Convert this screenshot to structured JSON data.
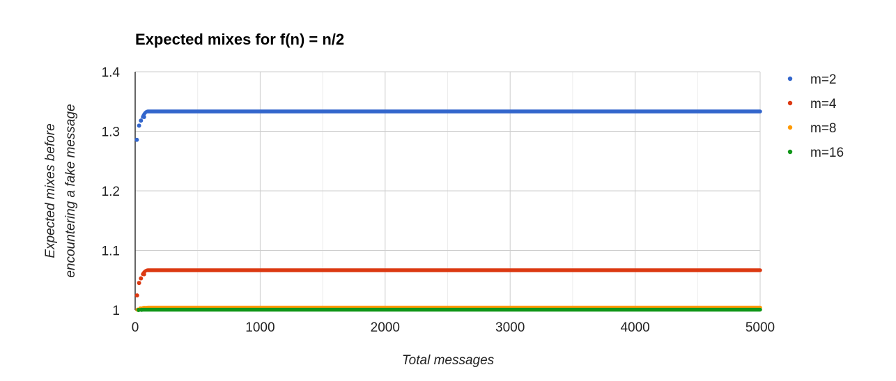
{
  "chart_data": {
    "type": "scatter",
    "title": "Expected mixes for f(n) = n/2",
    "xlabel": "Total messages",
    "ylabel_lines": [
      "Expected mixes before",
      "encountering a fake message"
    ],
    "xlim": [
      0,
      5000
    ],
    "ylim": [
      1,
      1.4
    ],
    "x_ticks": [
      0,
      1000,
      2000,
      3000,
      4000,
      5000
    ],
    "x_tick_labels": [
      "0",
      "1000",
      "2000",
      "3000",
      "4000",
      "5000"
    ],
    "y_ticks": [
      1,
      1.1,
      1.2,
      1.3,
      1.4
    ],
    "y_tick_labels": [
      "1",
      "1.1",
      "1.2",
      "1.3",
      "1.4"
    ],
    "x_minor_gridlines": [
      500,
      1500,
      2500,
      3500,
      4500
    ],
    "grid": true,
    "legend_position": "right",
    "series": [
      {
        "name": "m=2",
        "color": "#3366cc",
        "start_points": [
          [
            2,
            1.2857
          ],
          [
            20,
            1.3095
          ],
          [
            35,
            1.318
          ],
          [
            60,
            1.324
          ]
        ],
        "converge_from": 100,
        "converge_value": 1.3333
      },
      {
        "name": "m=4",
        "color": "#dc3912",
        "start_points": [
          [
            4,
            1.0244
          ],
          [
            20,
            1.0453
          ],
          [
            35,
            1.053
          ],
          [
            60,
            1.06
          ]
        ],
        "converge_from": 100,
        "converge_value": 1.0667
      },
      {
        "name": "m=8",
        "color": "#ff9900",
        "start_points": [
          [
            8,
            1.0005
          ],
          [
            30,
            1.0025
          ],
          [
            60,
            1.0035
          ]
        ],
        "converge_from": 100,
        "converge_value": 1.004
      },
      {
        "name": "m=16",
        "color": "#109618",
        "start_points": [
          [
            16,
            1.0
          ],
          [
            40,
            1.0003
          ]
        ],
        "converge_from": 60,
        "converge_value": 1.0005
      }
    ]
  }
}
